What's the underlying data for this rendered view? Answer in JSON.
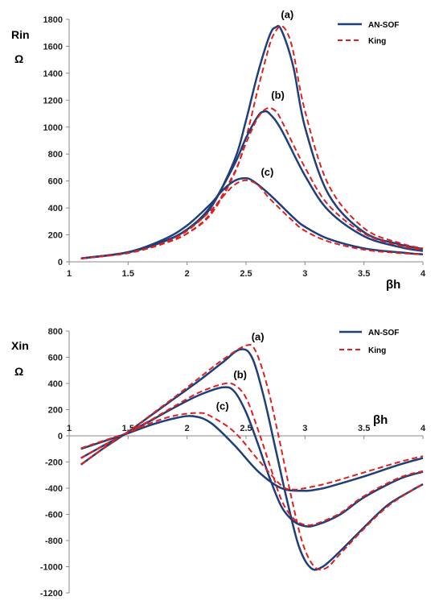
{
  "chart_data": [
    {
      "type": "line",
      "ylabel": "Rin",
      "yunit": "Ω",
      "xlabel": "βh",
      "xlim": [
        1,
        4
      ],
      "ylim": [
        0,
        1800
      ],
      "xticks": [
        "1",
        "1.5",
        "2",
        "2.5",
        "3",
        "3.5",
        "4"
      ],
      "yticks": [
        "0",
        "200",
        "400",
        "600",
        "800",
        "1000",
        "1200",
        "1400",
        "1600",
        "1800"
      ],
      "legend": {
        "position": "top-right",
        "entries": [
          "AN-SOF",
          "King"
        ]
      },
      "annotations": [
        {
          "text": "(a)",
          "x": 2.85,
          "y": 1810
        },
        {
          "text": "(b)",
          "x": 2.77,
          "y": 1210
        },
        {
          "text": "(c)",
          "x": 2.68,
          "y": 640
        }
      ],
      "series": [
        {
          "name": "AN-SOF",
          "curve": "(a)",
          "color": "#1f3f7a",
          "style": "solid",
          "x": [
            1.1,
            1.5,
            1.8,
            2.0,
            2.2,
            2.4,
            2.5,
            2.6,
            2.7,
            2.75,
            2.8,
            2.9,
            3.0,
            3.2,
            3.5,
            3.8,
            4.0
          ],
          "y": [
            25,
            70,
            150,
            240,
            400,
            750,
            1050,
            1400,
            1680,
            1740,
            1720,
            1450,
            1000,
            500,
            220,
            130,
            95
          ]
        },
        {
          "name": "King",
          "curve": "(a)",
          "color": "#e02020",
          "style": "dashed",
          "x": [
            1.1,
            1.5,
            1.8,
            2.0,
            2.2,
            2.4,
            2.5,
            2.6,
            2.7,
            2.75,
            2.8,
            2.85,
            2.9,
            3.0,
            3.2,
            3.5,
            3.8,
            4.0
          ],
          "y": [
            25,
            65,
            135,
            210,
            350,
            650,
            920,
            1280,
            1610,
            1710,
            1750,
            1700,
            1560,
            1120,
            570,
            250,
            140,
            100
          ]
        },
        {
          "name": "AN-SOF",
          "curve": "(b)",
          "color": "#1f3f7a",
          "style": "solid",
          "x": [
            1.1,
            1.5,
            1.8,
            2.0,
            2.2,
            2.4,
            2.5,
            2.6,
            2.65,
            2.7,
            2.8,
            3.0,
            3.2,
            3.5,
            3.8,
            4.0
          ],
          "y": [
            25,
            70,
            150,
            240,
            410,
            720,
            920,
            1080,
            1115,
            1100,
            980,
            640,
            380,
            190,
            110,
            80
          ]
        },
        {
          "name": "King",
          "curve": "(b)",
          "color": "#e02020",
          "style": "dashed",
          "x": [
            1.1,
            1.5,
            1.8,
            2.0,
            2.2,
            2.4,
            2.5,
            2.6,
            2.68,
            2.75,
            2.8,
            3.0,
            3.2,
            3.5,
            3.8,
            4.0
          ],
          "y": [
            25,
            65,
            135,
            210,
            360,
            660,
            880,
            1070,
            1140,
            1120,
            1050,
            700,
            420,
            210,
            120,
            90
          ]
        },
        {
          "name": "AN-SOF",
          "curve": "(c)",
          "color": "#1f3f7a",
          "style": "solid",
          "x": [
            1.1,
            1.5,
            1.8,
            2.0,
            2.2,
            2.3,
            2.4,
            2.48,
            2.55,
            2.7,
            2.9,
            3.0,
            3.2,
            3.5,
            3.8,
            4.0
          ],
          "y": [
            25,
            72,
            165,
            270,
            430,
            530,
            600,
            620,
            605,
            500,
            330,
            260,
            170,
            100,
            70,
            55
          ]
        },
        {
          "name": "King",
          "curve": "(c)",
          "color": "#e02020",
          "style": "dashed",
          "x": [
            1.1,
            1.5,
            1.8,
            2.0,
            2.2,
            2.3,
            2.4,
            2.5,
            2.6,
            2.7,
            2.9,
            3.0,
            3.2,
            3.5,
            3.8,
            4.0
          ],
          "y": [
            25,
            65,
            140,
            230,
            380,
            480,
            570,
            605,
            570,
            470,
            300,
            230,
            150,
            90,
            65,
            55
          ]
        }
      ]
    },
    {
      "type": "line",
      "ylabel": "Xin",
      "yunit": "Ω",
      "xlabel": "βh",
      "xlim": [
        1,
        4
      ],
      "ylim": [
        -1200,
        800
      ],
      "xticks": [
        "1",
        "1.5",
        "2",
        "2.5",
        "3",
        "3.5",
        "4"
      ],
      "yticks": [
        "800",
        "600",
        "400",
        "200",
        "0",
        "-200",
        "-400",
        "-600",
        "-800",
        "-1000",
        "-1200"
      ],
      "legend": {
        "position": "top-right",
        "entries": [
          "AN-SOF",
          "King"
        ]
      },
      "annotations": [
        {
          "text": "(a)",
          "x": 2.6,
          "y": 730
        },
        {
          "text": "(b)",
          "x": 2.45,
          "y": 440
        },
        {
          "text": "(c)",
          "x": 2.3,
          "y": 200
        }
      ],
      "series": [
        {
          "name": "AN-SOF",
          "curve": "(a)",
          "color": "#1f3f7a",
          "style": "solid",
          "x": [
            1.1,
            1.3,
            1.5,
            1.7,
            1.9,
            2.1,
            2.3,
            2.45,
            2.55,
            2.65,
            2.75,
            2.85,
            2.95,
            3.05,
            3.15,
            3.3,
            3.5,
            3.7,
            3.9,
            4.0
          ],
          "y": [
            -220,
            -90,
            30,
            160,
            290,
            420,
            560,
            660,
            600,
            300,
            -100,
            -500,
            -850,
            -1010,
            -1000,
            -880,
            -700,
            -530,
            -420,
            -370
          ]
        },
        {
          "name": "King",
          "curve": "(a)",
          "color": "#e02020",
          "style": "dashed",
          "x": [
            1.1,
            1.3,
            1.5,
            1.7,
            1.9,
            2.1,
            2.3,
            2.5,
            2.58,
            2.68,
            2.78,
            2.88,
            2.98,
            3.08,
            3.18,
            3.3,
            3.5,
            3.7,
            3.9,
            4.0
          ],
          "y": [
            -220,
            -90,
            30,
            165,
            300,
            440,
            580,
            690,
            650,
            380,
            -20,
            -450,
            -820,
            -1000,
            -1010,
            -900,
            -710,
            -540,
            -420,
            -370
          ]
        },
        {
          "name": "AN-SOF",
          "curve": "(b)",
          "color": "#1f3f7a",
          "style": "solid",
          "x": [
            1.1,
            1.3,
            1.5,
            1.7,
            1.9,
            2.1,
            2.3,
            2.4,
            2.5,
            2.6,
            2.7,
            2.8,
            2.9,
            3.0,
            3.1,
            3.3,
            3.5,
            3.8,
            4.0
          ],
          "y": [
            -170,
            -70,
            25,
            120,
            220,
            310,
            370,
            340,
            180,
            -60,
            -320,
            -540,
            -650,
            -690,
            -680,
            -600,
            -470,
            -330,
            -275
          ]
        },
        {
          "name": "King",
          "curve": "(b)",
          "color": "#e02020",
          "style": "dashed",
          "x": [
            1.1,
            1.3,
            1.5,
            1.7,
            1.9,
            2.1,
            2.3,
            2.4,
            2.5,
            2.6,
            2.7,
            2.8,
            2.9,
            3.0,
            3.1,
            3.3,
            3.5,
            3.8,
            4.0
          ],
          "y": [
            -170,
            -70,
            25,
            125,
            230,
            330,
            395,
            390,
            290,
            50,
            -220,
            -490,
            -630,
            -680,
            -670,
            -590,
            -460,
            -320,
            -270
          ]
        },
        {
          "name": "AN-SOF",
          "curve": "(c)",
          "color": "#1f3f7a",
          "style": "solid",
          "x": [
            1.1,
            1.3,
            1.5,
            1.7,
            1.9,
            2.05,
            2.2,
            2.4,
            2.6,
            2.8,
            3.0,
            3.1,
            3.2,
            3.5,
            3.8,
            4.0
          ],
          "y": [
            -100,
            -40,
            20,
            85,
            135,
            150,
            100,
            -70,
            -270,
            -400,
            -420,
            -410,
            -390,
            -310,
            -220,
            -170
          ]
        },
        {
          "name": "King",
          "curve": "(c)",
          "color": "#e02020",
          "style": "dashed",
          "x": [
            1.1,
            1.3,
            1.5,
            1.7,
            1.9,
            2.1,
            2.2,
            2.4,
            2.6,
            2.8,
            2.9,
            3.0,
            3.2,
            3.5,
            3.8,
            4.0
          ],
          "y": [
            -95,
            -35,
            25,
            100,
            155,
            175,
            150,
            30,
            -180,
            -380,
            -410,
            -400,
            -360,
            -280,
            -200,
            -155
          ]
        }
      ]
    }
  ]
}
